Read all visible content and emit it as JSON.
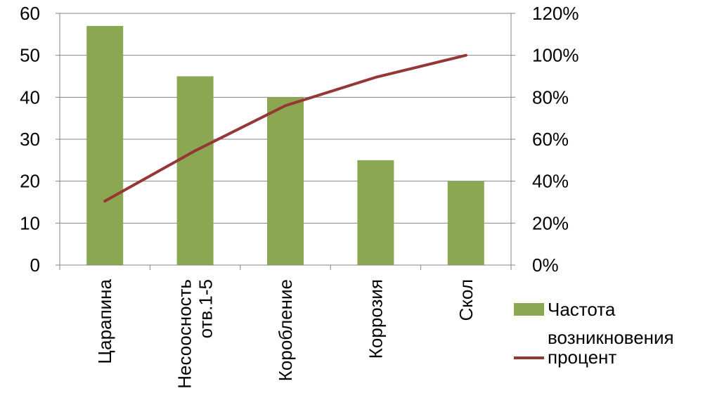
{
  "chart_data": {
    "type": "bar",
    "categories": [
      [
        "Царапина"
      ],
      [
        "Несоосность",
        "отв.1-5"
      ],
      [
        "Коробление"
      ],
      [
        "Коррозия"
      ],
      [
        "Скол"
      ]
    ],
    "series": [
      {
        "name": "Частота возникновения",
        "kind": "bar",
        "axis": "left",
        "values": [
          57,
          45,
          40,
          25,
          20
        ],
        "color": "#8BA752"
      },
      {
        "name": "процент",
        "kind": "line",
        "axis": "right",
        "values": [
          30.5,
          54.5,
          76,
          89.5,
          100
        ],
        "color": "#953735"
      }
    ],
    "y_left": {
      "min": 0,
      "max": 60,
      "step": 10,
      "ticks": [
        "0",
        "10",
        "20",
        "30",
        "40",
        "50",
        "60"
      ]
    },
    "y_right": {
      "min": 0,
      "max": 120,
      "step": 20,
      "ticks": [
        "0%",
        "20%",
        "40%",
        "60%",
        "80%",
        "100%",
        "120%"
      ]
    },
    "grid": true,
    "legend_position": "right",
    "legend": [
      {
        "label_lines": [
          "Частота",
          "возникновения"
        ],
        "marker": "bar",
        "color": "#8BA752"
      },
      {
        "label_lines": [
          "процент"
        ],
        "marker": "line",
        "color": "#953735"
      }
    ],
    "colors": {
      "grid": "#868686",
      "axis": "#868686",
      "text": "#000000"
    }
  }
}
